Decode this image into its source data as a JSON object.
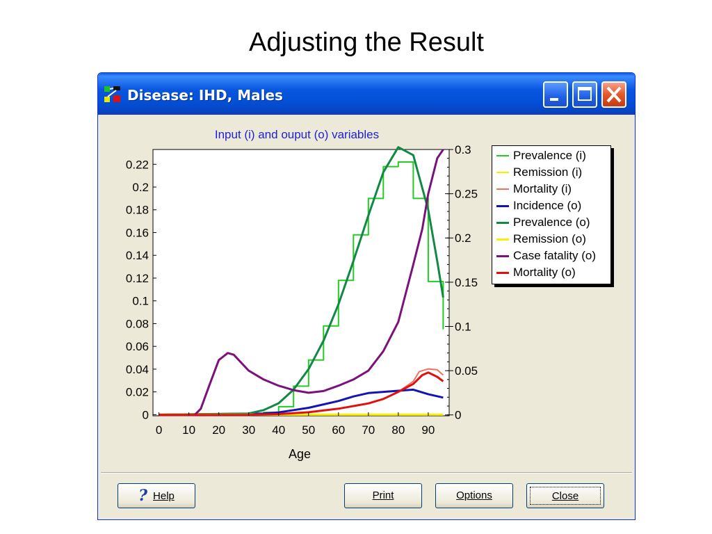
{
  "slide": {
    "title": "Adjusting the Result"
  },
  "window": {
    "title": "Disease: IHD, Males"
  },
  "buttons": {
    "help": "Help",
    "print": "Print",
    "options": "Options",
    "close": "Close"
  },
  "chart_data": {
    "type": "line",
    "title": "Input (i) and ouput (o) variables",
    "xlabel": "Age",
    "x_ticks": [
      0,
      10,
      20,
      30,
      40,
      50,
      60,
      70,
      80,
      90
    ],
    "xlim": [
      -2,
      97
    ],
    "y_left": {
      "lim": [
        -0.001,
        0.233
      ],
      "ticks": [
        0,
        0.02,
        0.04,
        0.06,
        0.08,
        0.1,
        0.12,
        0.14,
        0.16,
        0.18,
        0.2,
        0.22
      ],
      "tick_labels": [
        "0",
        "0.02",
        "0.04",
        "0.06",
        "0.08",
        "0.1",
        "0.12",
        "0.14",
        "0.16",
        "0.18",
        "0.2",
        "0.22"
      ]
    },
    "y_right": {
      "lim": [
        -0.001,
        0.3
      ],
      "ticks": [
        0,
        0.05,
        0.1,
        0.15,
        0.2,
        0.25,
        0.3
      ],
      "tick_labels": [
        "0",
        "0.05",
        "0.1",
        "0.15",
        "0.2",
        "0.25",
        "0.3"
      ]
    },
    "legend_position": "right",
    "grid": false,
    "series": [
      {
        "name": "Prevalence (i)",
        "axis": "left",
        "color": "#22cc22",
        "width": 2,
        "step": true,
        "x": [
          0,
          35,
          40,
          45,
          50,
          55,
          60,
          65,
          70,
          75,
          80,
          85,
          90,
          95
        ],
        "y": [
          0,
          0.002,
          0.007,
          0.025,
          0.048,
          0.078,
          0.118,
          0.158,
          0.19,
          0.218,
          0.222,
          0.19,
          0.117,
          0.075
        ]
      },
      {
        "name": "Remission (i)",
        "axis": "left",
        "color": "#f0f000",
        "width": 2,
        "step": false,
        "x": [
          0,
          95
        ],
        "y": [
          0,
          0
        ]
      },
      {
        "name": "Mortality (i)",
        "axis": "right",
        "color": "#f07060",
        "width": 2,
        "step": false,
        "x": [
          0,
          40,
          50,
          60,
          70,
          75,
          80,
          85,
          87,
          90,
          93,
          95
        ],
        "y": [
          0,
          0.001,
          0.003,
          0.007,
          0.013,
          0.018,
          0.026,
          0.038,
          0.049,
          0.052,
          0.051,
          0.045
        ]
      },
      {
        "name": "Incidence (o)",
        "axis": "left",
        "color": "#1414b4",
        "width": 3,
        "step": false,
        "x": [
          0,
          35,
          40,
          45,
          50,
          55,
          60,
          65,
          70,
          75,
          80,
          85,
          90,
          95
        ],
        "y": [
          0,
          0.001,
          0.002,
          0.004,
          0.006,
          0.009,
          0.012,
          0.016,
          0.019,
          0.02,
          0.021,
          0.022,
          0.018,
          0.015
        ]
      },
      {
        "name": "Prevalence (o)",
        "axis": "left",
        "color": "#118844",
        "width": 3,
        "step": false,
        "x": [
          0,
          30,
          35,
          40,
          45,
          50,
          55,
          60,
          65,
          70,
          75,
          80,
          85,
          90,
          93,
          95
        ],
        "y": [
          0,
          0.001,
          0.004,
          0.01,
          0.022,
          0.04,
          0.065,
          0.097,
          0.135,
          0.175,
          0.213,
          0.235,
          0.228,
          0.18,
          0.135,
          0.103
        ]
      },
      {
        "name": "Remission (o)",
        "axis": "left",
        "color": "#f8f000",
        "width": 3,
        "step": false,
        "x": [
          0,
          95
        ],
        "y": [
          0,
          0
        ]
      },
      {
        "name": "Case fatality (o)",
        "axis": "right",
        "color": "#7b117b",
        "width": 3,
        "step": false,
        "x": [
          0,
          12,
          14,
          17,
          20,
          23,
          25,
          30,
          35,
          40,
          45,
          50,
          55,
          60,
          65,
          70,
          75,
          80,
          85,
          88,
          90,
          93,
          95
        ],
        "y": [
          0,
          0,
          0.007,
          0.035,
          0.062,
          0.07,
          0.068,
          0.05,
          0.04,
          0.033,
          0.028,
          0.025,
          0.027,
          0.033,
          0.04,
          0.05,
          0.072,
          0.105,
          0.17,
          0.21,
          0.25,
          0.29,
          0.3
        ]
      },
      {
        "name": "Mortality (o)",
        "axis": "right",
        "color": "#e01010",
        "width": 3,
        "step": false,
        "x": [
          0,
          30,
          40,
          50,
          60,
          70,
          75,
          80,
          85,
          88,
          90,
          93,
          95
        ],
        "y": [
          0,
          0,
          0.001,
          0.003,
          0.007,
          0.013,
          0.018,
          0.026,
          0.035,
          0.045,
          0.048,
          0.043,
          0.038
        ]
      }
    ]
  }
}
